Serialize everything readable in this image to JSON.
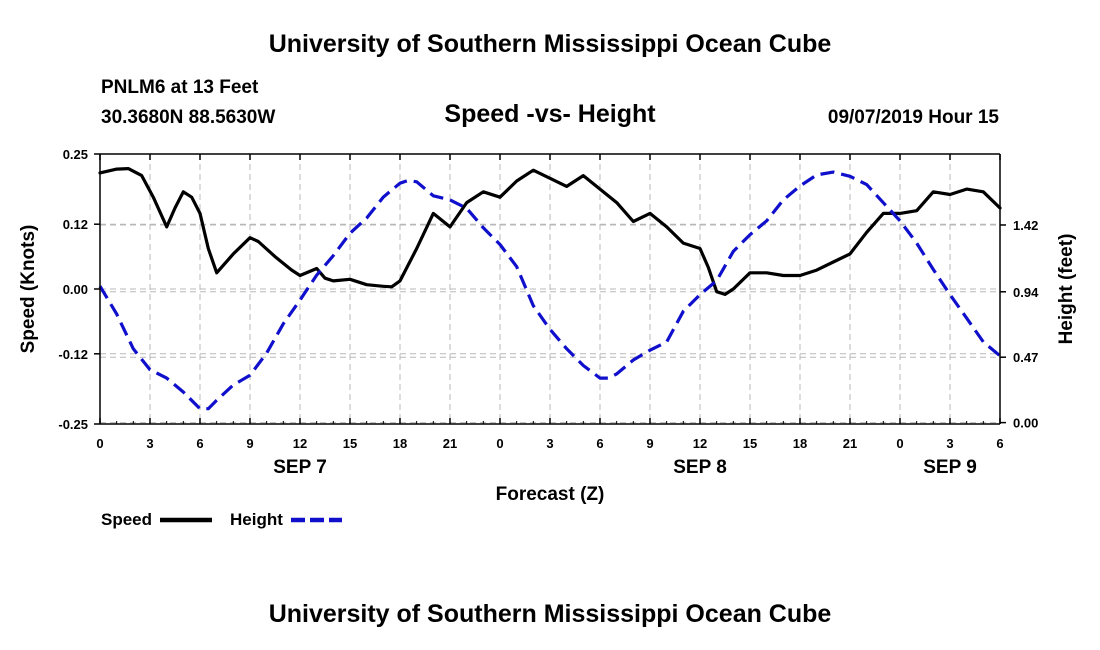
{
  "page": {
    "title_top": "University of Southern Mississippi Ocean Cube",
    "title_bottom": "University of Southern Mississippi Ocean Cube",
    "station": "PNLM6 at 13 Feet",
    "coords": "30.3680N 88.5630W",
    "subtitle": "Speed -vs- Height",
    "date": "09/07/2019 Hour 15"
  },
  "colors": {
    "speed": "#000000",
    "height": "#1010cc",
    "grid": "#b8b8b8"
  },
  "chart_data": {
    "type": "line",
    "title": "Speed -vs- Height",
    "xlabel": "Forecast (Z)",
    "ylabel": "Speed (Knots)",
    "y2label": "Height (feet)",
    "xlim": [
      0,
      54
    ],
    "ylim": [
      -0.25,
      0.25
    ],
    "y2lim": [
      -0.01,
      1.93
    ],
    "x_tick_positions": [
      0,
      3,
      6,
      9,
      12,
      15,
      18,
      21,
      24,
      27,
      30,
      33,
      36,
      39,
      42,
      45,
      48,
      51,
      54
    ],
    "x_tick_labels": [
      "0",
      "3",
      "6",
      "9",
      "12",
      "15",
      "18",
      "21",
      "0",
      "3",
      "6",
      "9",
      "12",
      "15",
      "18",
      "21",
      "0",
      "3",
      "6"
    ],
    "y_ticks": [
      -0.25,
      -0.12,
      0.0,
      0.12,
      0.25
    ],
    "y_tick_labels": [
      "-0.25",
      "-0.12",
      "0.00",
      "0.12",
      "0.25"
    ],
    "y2_ticks": [
      0.0,
      0.47,
      0.94,
      1.42
    ],
    "y2_tick_labels": [
      "0.00",
      "0.47",
      "0.94",
      "1.42"
    ],
    "date_labels": [
      {
        "text": "SEP 7",
        "x": 12
      },
      {
        "text": "SEP 8",
        "x": 36
      },
      {
        "text": "SEP 9",
        "x": 51
      }
    ],
    "grid": true,
    "legend": [
      {
        "name": "Speed",
        "key": "speed"
      },
      {
        "name": "Height",
        "key": "height"
      }
    ],
    "series": [
      {
        "name": "Speed",
        "axis": "left",
        "style": "solid",
        "x": [
          0,
          1,
          1.7,
          2.5,
          3.2,
          4,
          4.5,
          5,
          5.5,
          6,
          6.5,
          7,
          8,
          9,
          9.5,
          10.5,
          11.5,
          12,
          13,
          13.5,
          14,
          15,
          16,
          17,
          17.5,
          18,
          19,
          20,
          21,
          22,
          23,
          24,
          25,
          26,
          27,
          28,
          29,
          30,
          31,
          32,
          33,
          34,
          35,
          36,
          36.5,
          37,
          37.5,
          38,
          39,
          40,
          41,
          42,
          43,
          44,
          45,
          46,
          47,
          48,
          49,
          50,
          51,
          52,
          53,
          54
        ],
        "values": [
          0.215,
          0.222,
          0.223,
          0.21,
          0.17,
          0.115,
          0.15,
          0.18,
          0.17,
          0.14,
          0.075,
          0.03,
          0.065,
          0.095,
          0.088,
          0.06,
          0.035,
          0.025,
          0.038,
          0.02,
          0.015,
          0.018,
          0.008,
          0.005,
          0.004,
          0.015,
          0.075,
          0.14,
          0.115,
          0.16,
          0.18,
          0.17,
          0.2,
          0.22,
          0.205,
          0.19,
          0.21,
          0.185,
          0.16,
          0.125,
          0.14,
          0.115,
          0.085,
          0.075,
          0.04,
          -0.005,
          -0.01,
          0.0,
          0.03,
          0.03,
          0.025,
          0.025,
          0.035,
          0.05,
          0.065,
          0.105,
          0.14,
          0.14,
          0.145,
          0.18,
          0.175,
          0.185,
          0.18,
          0.15
        ]
      },
      {
        "name": "Height",
        "axis": "right",
        "style": "dashed",
        "x": [
          0,
          1,
          2,
          3,
          4,
          5,
          6,
          6.5,
          7,
          8,
          9,
          10,
          11,
          12,
          13,
          14,
          15,
          16,
          17,
          18,
          18.5,
          19,
          20,
          21,
          22,
          23,
          24,
          25,
          26,
          27,
          28,
          29,
          30,
          30.5,
          31,
          32,
          33,
          34,
          35,
          36,
          37,
          38,
          39,
          40,
          41,
          42,
          43,
          44,
          45,
          46,
          47,
          48,
          49,
          50,
          51,
          52,
          53,
          54
        ],
        "values": [
          0.98,
          0.78,
          0.53,
          0.38,
          0.32,
          0.22,
          0.1,
          0.1,
          0.16,
          0.27,
          0.34,
          0.5,
          0.71,
          0.88,
          1.06,
          1.2,
          1.36,
          1.47,
          1.62,
          1.72,
          1.74,
          1.73,
          1.63,
          1.6,
          1.54,
          1.4,
          1.28,
          1.12,
          0.84,
          0.67,
          0.53,
          0.41,
          0.32,
          0.32,
          0.35,
          0.45,
          0.52,
          0.58,
          0.8,
          0.92,
          1.02,
          1.23,
          1.35,
          1.45,
          1.6,
          1.7,
          1.78,
          1.8,
          1.77,
          1.71,
          1.58,
          1.45,
          1.29,
          1.1,
          0.92,
          0.75,
          0.58,
          0.48
        ]
      }
    ]
  }
}
